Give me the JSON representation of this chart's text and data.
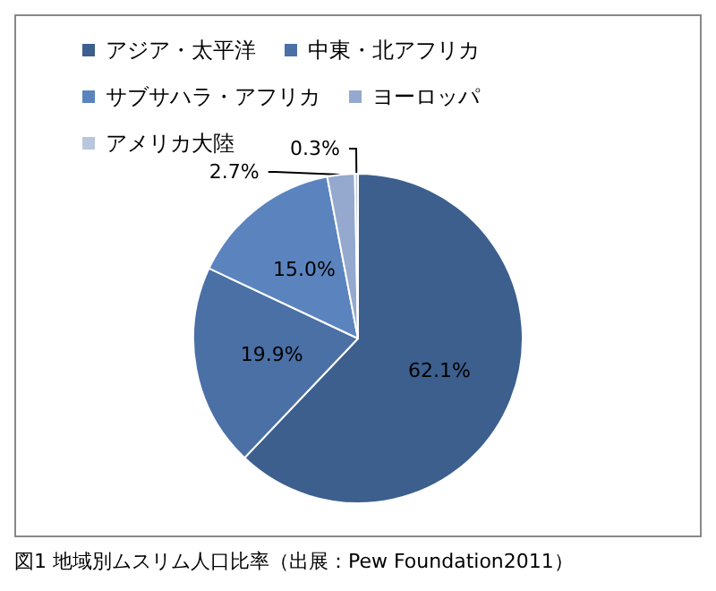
{
  "chart_data": {
    "type": "pie",
    "categories": [
      "アジア・太平洋",
      "中東・北アフリカ",
      "サブサハラ・アフリカ",
      "ヨーロッパ",
      "アメリカ大陸"
    ],
    "values": [
      62.1,
      19.9,
      15.0,
      2.7,
      0.3
    ],
    "value_labels": [
      "62.1%",
      "19.9%",
      "15.0%",
      "2.7%",
      "0.3%"
    ],
    "colors": [
      "#3c5f8e",
      "#4a70a6",
      "#5b84bf",
      "#95a9cf",
      "#b9c6df"
    ],
    "legend": "top",
    "annotations": [
      "図1 地域別ムスリム人口比率（出展：Pew Foundation2011）"
    ]
  }
}
